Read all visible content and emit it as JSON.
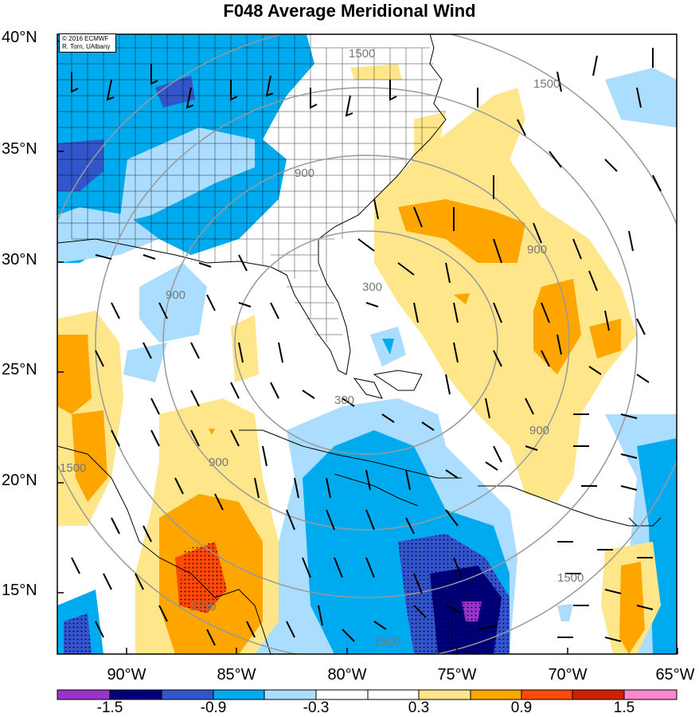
{
  "title": "F048 Average Meridional Wind",
  "credit": {
    "line1": "© 2016 ECMWF",
    "line2": "R. Torn, UAlbany"
  },
  "lat_labels": [
    "40°N",
    "35°N",
    "30°N",
    "25°N",
    "20°N",
    "15°N"
  ],
  "lon_labels": [
    "90°W",
    "85°W",
    "80°W",
    "75°W",
    "70°W",
    "65°W"
  ],
  "contour_labels": [
    "1500",
    "1500",
    "900",
    "900",
    "900",
    "300",
    "300",
    "900",
    "1500",
    "900",
    "1500",
    "1500",
    "1500"
  ],
  "colorbar": {
    "labels": [
      "-1.5",
      "-0.9",
      "-0.3",
      "0.3",
      "0.9",
      "1.5"
    ],
    "colors": [
      "#9933cc",
      "#00007a",
      "#3355cc",
      "#00aaee",
      "#aaddff",
      "#ffffff",
      "#ffffff",
      "#ffe68a",
      "#ffa500",
      "#ff4a0a",
      "#cc2200",
      "#ff88cc"
    ]
  },
  "shading_colors": {
    "light_blue": "#aaddff",
    "blue": "#00aaee",
    "medium_blue": "#3355cc",
    "navy": "#00007a",
    "purple": "#9933cc",
    "light_yellow": "#ffe68a",
    "orange": "#ffa500",
    "red_orange": "#ff4a0a"
  }
}
